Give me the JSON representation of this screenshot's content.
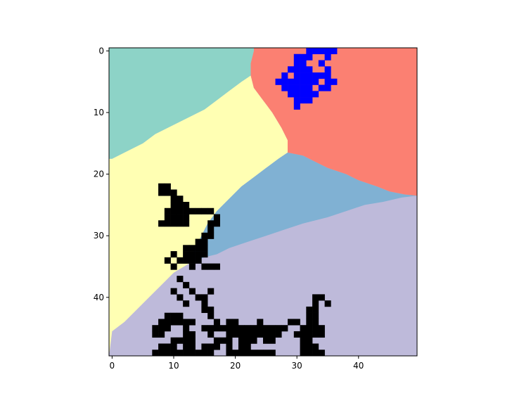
{
  "chart_data": {
    "type": "heatmap",
    "title": "",
    "xlabel": "",
    "ylabel": "",
    "grid": false,
    "rows": 50,
    "cols": 50,
    "xlim": [
      -0.5,
      49.5
    ],
    "ylim": [
      49.5,
      -0.5
    ],
    "x_ticks": [
      0,
      10,
      20,
      30,
      40
    ],
    "y_ticks": [
      0,
      10,
      20,
      30,
      40
    ],
    "colors": {
      "region_teal": "#8dd3c7",
      "region_salmon": "#fb8072",
      "region_yellow": "#ffffb3",
      "region_steelblue": "#80b1d3",
      "region_lavender": "#bebada",
      "marker_black": "#000000",
      "marker_blue": "#0000ff",
      "frame": "#000000",
      "background": "#ffffff"
    },
    "regions": [
      {
        "name": "teal",
        "color_key": "region_teal"
      },
      {
        "name": "salmon",
        "color_key": "region_salmon"
      },
      {
        "name": "yellow",
        "color_key": "region_yellow"
      },
      {
        "name": "steelblue",
        "color_key": "region_steelblue"
      },
      {
        "name": "lavender",
        "color_key": "region_lavender"
      }
    ],
    "region_boundaries": {
      "teal_yellow": [
        [
          0,
          17.5
        ],
        [
          3,
          16
        ],
        [
          5,
          15
        ],
        [
          7,
          13.5
        ],
        [
          9,
          12.5
        ],
        [
          12,
          11
        ],
        [
          15,
          9.5
        ],
        [
          17,
          8
        ],
        [
          19,
          6.5
        ],
        [
          21,
          5
        ],
        [
          22.5,
          4
        ]
      ],
      "teal_salmon": [
        [
          22.5,
          4
        ],
        [
          22.5,
          2
        ],
        [
          23,
          0
        ],
        [
          23,
          -0.5
        ]
      ],
      "salmon_yellow": [
        [
          22.5,
          4
        ],
        [
          23,
          6
        ],
        [
          24.5,
          8
        ],
        [
          26,
          10
        ],
        [
          27.5,
          12.5
        ],
        [
          28.5,
          14.5
        ],
        [
          28.5,
          16.5
        ]
      ],
      "salmon_steelblue": [
        [
          28.5,
          16.5
        ],
        [
          31,
          17
        ],
        [
          33,
          18
        ],
        [
          35,
          19
        ],
        [
          38,
          20
        ],
        [
          40,
          21
        ],
        [
          43,
          22
        ],
        [
          45,
          22.8
        ],
        [
          47.5,
          23.3
        ],
        [
          49.5,
          23.5
        ]
      ],
      "yellow_steelblue": [
        [
          28.5,
          16.5
        ],
        [
          27,
          17.5
        ],
        [
          25,
          19
        ],
        [
          23,
          20.5
        ],
        [
          21,
          22
        ],
        [
          19,
          24
        ],
        [
          17,
          26
        ],
        [
          15.5,
          28
        ],
        [
          14.5,
          30
        ],
        [
          13,
          33
        ],
        [
          12.5,
          34.5
        ]
      ],
      "steelblue_lavender": [
        [
          12.5,
          34.5
        ],
        [
          15,
          33.5
        ],
        [
          17,
          33
        ],
        [
          19,
          32
        ],
        [
          22,
          31
        ],
        [
          25,
          30
        ],
        [
          28,
          29
        ],
        [
          31,
          28
        ],
        [
          35,
          27
        ],
        [
          38,
          26
        ],
        [
          41,
          25
        ],
        [
          44,
          24.5
        ],
        [
          47,
          23.8
        ],
        [
          49.5,
          23.5
        ]
      ],
      "yellow_lavender": [
        [
          12.5,
          34.5
        ],
        [
          10,
          36
        ],
        [
          8,
          38
        ],
        [
          6,
          40
        ],
        [
          4,
          42
        ],
        [
          2,
          44
        ],
        [
          0,
          45.5
        ]
      ]
    },
    "marker_cells": {
      "black": [
        [
          22,
          8
        ],
        [
          22,
          9
        ],
        [
          23,
          8
        ],
        [
          23,
          9
        ],
        [
          23,
          10
        ],
        [
          24,
          10
        ],
        [
          24,
          11
        ],
        [
          25,
          10
        ],
        [
          25,
          11
        ],
        [
          25,
          12
        ],
        [
          26,
          9
        ],
        [
          26,
          10
        ],
        [
          26,
          11
        ],
        [
          26,
          12
        ],
        [
          26,
          13
        ],
        [
          26,
          14
        ],
        [
          26,
          15
        ],
        [
          26,
          16
        ],
        [
          27,
          9
        ],
        [
          27,
          10
        ],
        [
          27,
          11
        ],
        [
          27,
          12
        ],
        [
          27,
          17
        ],
        [
          28,
          8
        ],
        [
          28,
          9
        ],
        [
          28,
          10
        ],
        [
          28,
          11
        ],
        [
          28,
          12
        ],
        [
          28,
          16
        ],
        [
          28,
          17
        ],
        [
          29,
          16
        ],
        [
          30,
          15
        ],
        [
          30,
          16
        ],
        [
          31,
          14
        ],
        [
          31,
          15
        ],
        [
          32,
          12
        ],
        [
          32,
          13
        ],
        [
          32,
          14
        ],
        [
          32,
          15
        ],
        [
          33,
          10
        ],
        [
          33,
          12
        ],
        [
          33,
          13
        ],
        [
          33,
          14
        ],
        [
          33,
          15
        ],
        [
          34,
          9
        ],
        [
          34,
          11
        ],
        [
          34,
          12
        ],
        [
          34,
          13
        ],
        [
          34,
          14
        ],
        [
          35,
          10
        ],
        [
          35,
          13
        ],
        [
          35,
          15
        ],
        [
          35,
          16
        ],
        [
          35,
          17
        ],
        [
          37,
          11
        ],
        [
          38,
          12
        ],
        [
          39,
          10
        ],
        [
          39,
          13
        ],
        [
          39,
          16
        ],
        [
          40,
          11
        ],
        [
          40,
          14
        ],
        [
          40,
          15
        ],
        [
          41,
          12
        ],
        [
          41,
          15
        ],
        [
          42,
          15
        ],
        [
          42,
          16
        ],
        [
          40,
          33
        ],
        [
          40,
          34
        ],
        [
          41,
          33
        ],
        [
          41,
          35
        ],
        [
          42,
          32
        ],
        [
          42,
          33
        ],
        [
          43,
          9
        ],
        [
          43,
          10
        ],
        [
          43,
          11
        ],
        [
          43,
          16
        ],
        [
          43,
          32
        ],
        [
          43,
          33
        ],
        [
          44,
          8
        ],
        [
          44,
          9
        ],
        [
          44,
          10
        ],
        [
          44,
          11
        ],
        [
          44,
          12
        ],
        [
          44,
          13
        ],
        [
          44,
          17
        ],
        [
          44,
          19
        ],
        [
          44,
          20
        ],
        [
          44,
          24
        ],
        [
          44,
          29
        ],
        [
          44,
          30
        ],
        [
          44,
          32
        ],
        [
          44,
          33
        ],
        [
          45,
          7
        ],
        [
          45,
          8
        ],
        [
          45,
          9
        ],
        [
          45,
          12
        ],
        [
          45,
          15
        ],
        [
          45,
          16
        ],
        [
          45,
          17
        ],
        [
          45,
          18
        ],
        [
          45,
          19
        ],
        [
          45,
          20
        ],
        [
          45,
          21
        ],
        [
          45,
          22
        ],
        [
          45,
          23
        ],
        [
          45,
          24
        ],
        [
          45,
          25
        ],
        [
          45,
          26
        ],
        [
          45,
          27
        ],
        [
          45,
          28
        ],
        [
          45,
          31
        ],
        [
          45,
          32
        ],
        [
          45,
          33
        ],
        [
          45,
          34
        ],
        [
          46,
          7
        ],
        [
          46,
          8
        ],
        [
          46,
          12
        ],
        [
          46,
          13
        ],
        [
          46,
          16
        ],
        [
          46,
          19
        ],
        [
          46,
          20
        ],
        [
          46,
          21
        ],
        [
          46,
          22
        ],
        [
          46,
          23
        ],
        [
          46,
          24
        ],
        [
          46,
          25
        ],
        [
          46,
          26
        ],
        [
          46,
          27
        ],
        [
          46,
          30
        ],
        [
          46,
          31
        ],
        [
          46,
          32
        ],
        [
          46,
          33
        ],
        [
          46,
          34
        ],
        [
          47,
          10
        ],
        [
          47,
          11
        ],
        [
          47,
          12
        ],
        [
          47,
          13
        ],
        [
          47,
          17
        ],
        [
          47,
          18
        ],
        [
          47,
          19
        ],
        [
          47,
          21
        ],
        [
          47,
          22
        ],
        [
          47,
          23
        ],
        [
          47,
          25
        ],
        [
          47,
          26
        ],
        [
          47,
          31
        ],
        [
          47,
          32
        ],
        [
          48,
          8
        ],
        [
          48,
          9
        ],
        [
          48,
          10
        ],
        [
          48,
          12
        ],
        [
          48,
          13
        ],
        [
          48,
          15
        ],
        [
          48,
          16
        ],
        [
          48,
          17
        ],
        [
          48,
          19
        ],
        [
          48,
          21
        ],
        [
          48,
          22
        ],
        [
          48,
          31
        ],
        [
          48,
          32
        ],
        [
          48,
          33
        ],
        [
          49,
          7
        ],
        [
          49,
          8
        ],
        [
          49,
          9
        ],
        [
          49,
          10
        ],
        [
          49,
          11
        ],
        [
          49,
          12
        ],
        [
          49,
          13
        ],
        [
          49,
          14
        ],
        [
          49,
          15
        ],
        [
          49,
          16
        ],
        [
          49,
          19
        ],
        [
          49,
          20
        ],
        [
          49,
          21
        ],
        [
          49,
          22
        ],
        [
          49,
          23
        ],
        [
          49,
          24
        ],
        [
          49,
          25
        ],
        [
          49,
          26
        ],
        [
          49,
          31
        ],
        [
          49,
          32
        ],
        [
          49,
          33
        ],
        [
          49,
          34
        ]
      ],
      "blue": [
        [
          0,
          32
        ],
        [
          0,
          33
        ],
        [
          0,
          34
        ],
        [
          0,
          35
        ],
        [
          0,
          36
        ],
        [
          1,
          30
        ],
        [
          1,
          31
        ],
        [
          1,
          32
        ],
        [
          1,
          35
        ],
        [
          2,
          30
        ],
        [
          2,
          31
        ],
        [
          2,
          34
        ],
        [
          3,
          29
        ],
        [
          3,
          30
        ],
        [
          3,
          31
        ],
        [
          3,
          32
        ],
        [
          3,
          35
        ],
        [
          4,
          28
        ],
        [
          4,
          30
        ],
        [
          4,
          31
        ],
        [
          4,
          32
        ],
        [
          4,
          33
        ],
        [
          4,
          34
        ],
        [
          4,
          35
        ],
        [
          5,
          27
        ],
        [
          5,
          28
        ],
        [
          5,
          29
        ],
        [
          5,
          30
        ],
        [
          5,
          31
        ],
        [
          5,
          32
        ],
        [
          5,
          33
        ],
        [
          5,
          35
        ],
        [
          5,
          36
        ],
        [
          6,
          28
        ],
        [
          6,
          29
        ],
        [
          6,
          30
        ],
        [
          6,
          31
        ],
        [
          6,
          32
        ],
        [
          6,
          34
        ],
        [
          6,
          35
        ],
        [
          7,
          29
        ],
        [
          7,
          30
        ],
        [
          7,
          31
        ],
        [
          7,
          32
        ],
        [
          7,
          33
        ],
        [
          8,
          30
        ],
        [
          8,
          31
        ],
        [
          8,
          32
        ],
        [
          9,
          30
        ]
      ]
    }
  }
}
